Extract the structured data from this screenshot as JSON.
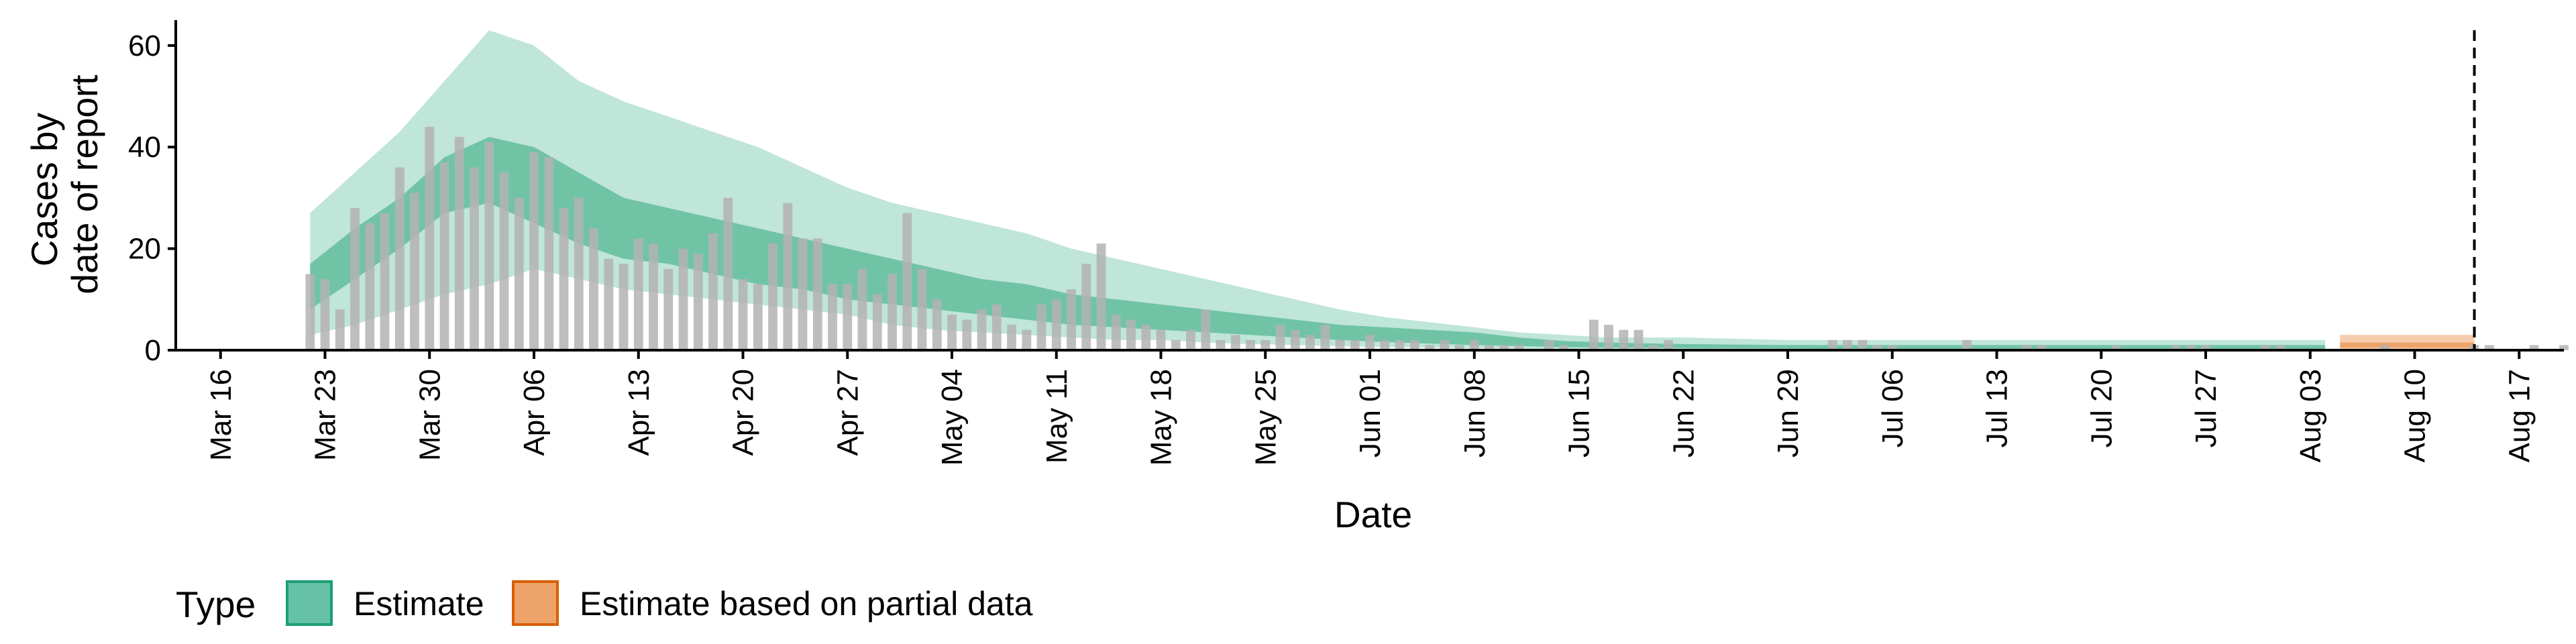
{
  "chart_data": {
    "type": "area",
    "xlabel": "Date",
    "ylabel": [
      "Cases by",
      "date of report"
    ],
    "ylim": [
      0,
      65
    ],
    "yticks": [
      0,
      20,
      40,
      60
    ],
    "xlim": [
      "2020-03-13",
      "2020-08-20"
    ],
    "xticks": [
      {
        "date": "2020-03-16",
        "label": "Mar 16"
      },
      {
        "date": "2020-03-23",
        "label": "Mar 23"
      },
      {
        "date": "2020-03-30",
        "label": "Mar 30"
      },
      {
        "date": "2020-04-06",
        "label": "Apr 06"
      },
      {
        "date": "2020-04-13",
        "label": "Apr 13"
      },
      {
        "date": "2020-04-20",
        "label": "Apr 20"
      },
      {
        "date": "2020-04-27",
        "label": "Apr 27"
      },
      {
        "date": "2020-05-04",
        "label": "May 04"
      },
      {
        "date": "2020-05-11",
        "label": "May 11"
      },
      {
        "date": "2020-05-18",
        "label": "May 18"
      },
      {
        "date": "2020-05-25",
        "label": "May 25"
      },
      {
        "date": "2020-06-01",
        "label": "Jun 01"
      },
      {
        "date": "2020-06-08",
        "label": "Jun 08"
      },
      {
        "date": "2020-06-15",
        "label": "Jun 15"
      },
      {
        "date": "2020-06-22",
        "label": "Jun 22"
      },
      {
        "date": "2020-06-29",
        "label": "Jun 29"
      },
      {
        "date": "2020-07-06",
        "label": "Jul 06"
      },
      {
        "date": "2020-07-13",
        "label": "Jul 13"
      },
      {
        "date": "2020-07-20",
        "label": "Jul 20"
      },
      {
        "date": "2020-07-27",
        "label": "Jul 27"
      },
      {
        "date": "2020-08-03",
        "label": "Aug 03"
      },
      {
        "date": "2020-08-10",
        "label": "Aug 10"
      },
      {
        "date": "2020-08-17",
        "label": "Aug 17"
      }
    ],
    "reference_line": {
      "date": "2020-08-14",
      "style": "dashed"
    },
    "legend": {
      "title": "Type",
      "position": "bottom",
      "entries": [
        {
          "label": "Estimate",
          "fill": "#66c2a5",
          "stroke": "#1b9e77"
        },
        {
          "label": "Estimate based on partial data",
          "fill": "#eda36a",
          "stroke": "#d95f02"
        }
      ]
    },
    "colors": {
      "estimate_outer": "#c0e5d9",
      "estimate_inner": "#70c4a5",
      "partial_outer": "#f6ccad",
      "partial_inner": "#eda36a",
      "bars": "#b3b3b3",
      "reference_line": "#000000"
    },
    "bars": {
      "start": "2020-03-22",
      "values": [
        15,
        14,
        8,
        28,
        25,
        27,
        36,
        31,
        44,
        37,
        42,
        36,
        41,
        35,
        30,
        39,
        38,
        28,
        30,
        24,
        18,
        17,
        22,
        21,
        16,
        20,
        19,
        23,
        30,
        14,
        13,
        21,
        29,
        22,
        22,
        13,
        13,
        16,
        11,
        15,
        27,
        16,
        10,
        7,
        6,
        8,
        9,
        5,
        4,
        9,
        10,
        12,
        17,
        21,
        7,
        6,
        5,
        4,
        2,
        4,
        8,
        2,
        3,
        2,
        2,
        5,
        4,
        3,
        5,
        2,
        2,
        3,
        2,
        2,
        2,
        1,
        2,
        1,
        2,
        1,
        1,
        1,
        0,
        2,
        1,
        0,
        6,
        5,
        4,
        4,
        1,
        2,
        0,
        0,
        0,
        0,
        0,
        0,
        0,
        0,
        0,
        0,
        2,
        2,
        2,
        1,
        1,
        0,
        0,
        0,
        0,
        2,
        0,
        0,
        0,
        1,
        1,
        0,
        0,
        0,
        0,
        1,
        0,
        0,
        0,
        1,
        1,
        1,
        0,
        0,
        0,
        1,
        1,
        0,
        0,
        0,
        0,
        0,
        0,
        1,
        0,
        0,
        0,
        0,
        0,
        1,
        1,
        0,
        0,
        1,
        0,
        1,
        0,
        0,
        0,
        0,
        0,
        1,
        2,
        0,
        0,
        0,
        1,
        1,
        1,
        1
      ]
    },
    "series": [
      {
        "name": "Estimate",
        "x_start": "2020-03-22",
        "x_end": "2020-08-04",
        "key_dates": [
          "2020-03-22",
          "2020-03-25",
          "2020-03-28",
          "2020-03-31",
          "2020-04-03",
          "2020-04-06",
          "2020-04-09",
          "2020-04-12",
          "2020-04-15",
          "2020-04-18",
          "2020-04-21",
          "2020-04-24",
          "2020-04-27",
          "2020-04-30",
          "2020-05-03",
          "2020-05-06",
          "2020-05-09",
          "2020-05-12",
          "2020-05-15",
          "2020-05-18",
          "2020-05-21",
          "2020-05-24",
          "2020-05-27",
          "2020-05-30",
          "2020-06-02",
          "2020-06-05",
          "2020-06-08",
          "2020-06-11",
          "2020-06-14",
          "2020-06-17",
          "2020-06-22",
          "2020-06-29",
          "2020-07-06",
          "2020-07-13",
          "2020-07-20",
          "2020-07-27",
          "2020-08-04"
        ],
        "lower_90": [
          3,
          5,
          8,
          11,
          13,
          16,
          14,
          12,
          11,
          10,
          9,
          8,
          7,
          5,
          4,
          3.5,
          3,
          2.5,
          2,
          2,
          1.5,
          1.2,
          1,
          0.8,
          0.6,
          0.5,
          0.4,
          0.3,
          0.2,
          0.1,
          0,
          0,
          0,
          0,
          0,
          0,
          0
        ],
        "lower_50": [
          8,
          14,
          20,
          27,
          29,
          25,
          21,
          18,
          17,
          15,
          13,
          12,
          10,
          9,
          8,
          7,
          6,
          5,
          4.5,
          4,
          3.5,
          3,
          2.5,
          2,
          1.6,
          1.3,
          1,
          0.8,
          0.6,
          0.5,
          0.4,
          0.3,
          0.2,
          0.2,
          0.2,
          0.2,
          0.2
        ],
        "upper_50": [
          17,
          24,
          30,
          38,
          42,
          40,
          35,
          30,
          28,
          26,
          24,
          22,
          20,
          18,
          16,
          14,
          13,
          11,
          10,
          9,
          8,
          7,
          6,
          5,
          4.5,
          4,
          3.5,
          2.5,
          1.8,
          1.5,
          1.2,
          1,
          1,
          1,
          1,
          1,
          1
        ],
        "upper_90": [
          27,
          35,
          43,
          53,
          63,
          60,
          53,
          49,
          46,
          43,
          40,
          36,
          32,
          29,
          27,
          25,
          23,
          20,
          18,
          16,
          14,
          12,
          10,
          8,
          6.5,
          5.5,
          4.5,
          3.5,
          3,
          2.5,
          2.5,
          2,
          2,
          2,
          2,
          2,
          2
        ]
      },
      {
        "name": "Estimate based on partial data",
        "x_start": "2020-08-05",
        "x_end": "2020-08-14",
        "key_dates": [
          "2020-08-05",
          "2020-08-14"
        ],
        "lower_90": [
          0,
          0
        ],
        "lower_50": [
          0.5,
          0.5
        ],
        "upper_50": [
          1.5,
          1.5
        ],
        "upper_90": [
          3,
          3
        ]
      }
    ]
  }
}
